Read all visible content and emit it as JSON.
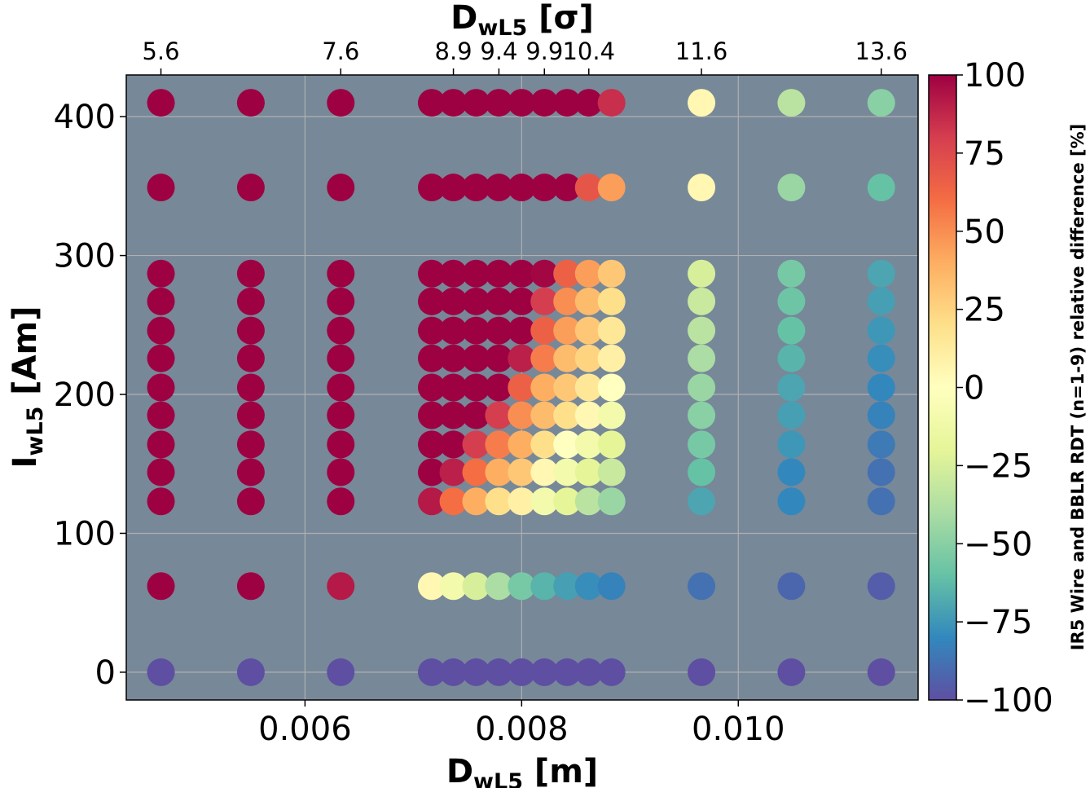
{
  "chart_data": {
    "type": "scatter",
    "x_unit_values_m": [
      0.00467,
      0.0055,
      0.00633,
      0.00717,
      0.00737,
      0.00758,
      0.00779,
      0.008,
      0.00821,
      0.00842,
      0.00862,
      0.00883,
      0.00966,
      0.01049,
      0.01132
    ],
    "y_values_Am": [
      0,
      62,
      123,
      144,
      164,
      185,
      205,
      226,
      246,
      267,
      287,
      349,
      410
    ],
    "z_percent_grid": [
      [
        -100,
        -100,
        -100,
        -100,
        -100,
        -100,
        -100,
        -100,
        -100,
        -100,
        -100,
        -100,
        -100,
        -100,
        -100
      ],
      [
        100,
        100,
        92,
        5,
        -10,
        -25,
        -40,
        -55,
        -65,
        -72,
        -78,
        -82,
        -88,
        -92,
        -95
      ],
      [
        100,
        100,
        100,
        92,
        60,
        40,
        20,
        10,
        -10,
        -20,
        -35,
        -45,
        -70,
        -80,
        -88
      ],
      [
        100,
        100,
        100,
        100,
        90,
        60,
        40,
        30,
        5,
        -10,
        -20,
        -30,
        -60,
        -80,
        -88
      ],
      [
        100,
        100,
        100,
        100,
        100,
        80,
        55,
        40,
        20,
        0,
        -10,
        -20,
        -55,
        -75,
        -85
      ],
      [
        100,
        100,
        100,
        100,
        100,
        100,
        80,
        50,
        35,
        20,
        5,
        -10,
        -50,
        -72,
        -82
      ],
      [
        100,
        100,
        100,
        100,
        100,
        100,
        100,
        65,
        40,
        30,
        15,
        0,
        -45,
        -70,
        -80
      ],
      [
        100,
        100,
        100,
        100,
        100,
        100,
        100,
        90,
        55,
        35,
        25,
        10,
        -40,
        -65,
        -78
      ],
      [
        100,
        100,
        100,
        100,
        100,
        100,
        100,
        100,
        65,
        45,
        30,
        15,
        -35,
        -60,
        -75
      ],
      [
        100,
        100,
        100,
        100,
        100,
        100,
        100,
        100,
        80,
        50,
        35,
        20,
        -30,
        -58,
        -72
      ],
      [
        100,
        100,
        100,
        100,
        100,
        100,
        100,
        100,
        98,
        65,
        45,
        30,
        -25,
        -55,
        -70
      ],
      [
        100,
        100,
        100,
        100,
        100,
        100,
        100,
        100,
        100,
        100,
        70,
        45,
        5,
        -45,
        -60
      ],
      [
        100,
        100,
        100,
        100,
        100,
        100,
        100,
        100,
        100,
        100,
        100,
        85,
        5,
        -35,
        -50
      ]
    ],
    "xlabel": "D",
    "xlabel_sub": "wL5",
    "xlabel_unit": " [m]",
    "x_ticks": [
      0.006,
      0.008,
      0.01
    ],
    "x_tick_labels": [
      "0.006",
      "0.008",
      "0.010"
    ],
    "xlim": [
      0.00435,
      0.01166
    ],
    "ylabel": "I",
    "ylabel_sub": "wL5",
    "ylabel_unit": " [Am]",
    "y_ticks": [
      0,
      100,
      200,
      300,
      400
    ],
    "y_tick_labels": [
      "0",
      "100",
      "200",
      "300",
      "400"
    ],
    "ylim": [
      -20,
      430
    ],
    "top_axis_label": "D",
    "top_axis_sub": "wL5",
    "top_axis_unit": " [σ]",
    "top_ticks_m": [
      0.00467,
      0.00633,
      0.00737,
      0.00779,
      0.00821,
      0.00862,
      0.00966,
      0.01132
    ],
    "top_tick_labels": [
      "5.6",
      "7.6",
      "8.9",
      "9.4",
      "9.9",
      "10.4",
      "11.6",
      "13.6"
    ],
    "colorbar_label": "IR5 Wire and BBLR RDT (n=1-9) relative difference [%]",
    "colorbar_ticks": [
      100,
      75,
      50,
      25,
      0,
      -25,
      -50,
      -75,
      -100
    ],
    "colorbar_tick_labels": [
      "100",
      "75",
      "50",
      "25",
      "0",
      "−25",
      "−50",
      "−75",
      "−100"
    ],
    "clim": [
      -100,
      100
    ],
    "colormap": "Spectral",
    "plot_background": "#778899",
    "grid": true
  }
}
